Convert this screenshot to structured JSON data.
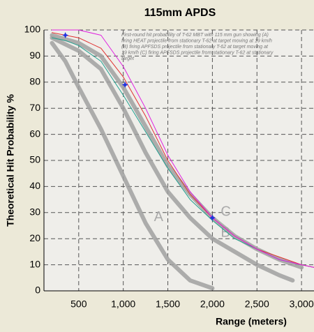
{
  "chart_data": {
    "type": "line",
    "title": "115mm APDS",
    "x_label": "Range (meters)",
    "y_label": "Theoretical Hit Probability %",
    "annotation_lines": [
      "First-round hit probability of T-62 MBT with 115 mm gun showing (A)",
      "firing HEAT projectile from stationary T-62 at target moving at 19 km/h",
      "(B) firing APFSDS projectile from stationary T-62 at target moving at",
      "19 km/h (C) firing APFSDS projectile from stationary T-62 at stationary",
      "target"
    ],
    "xlim": [
      110,
      3140
    ],
    "ylim": [
      0,
      100
    ],
    "xticks": [
      500,
      {
        "value": 1000,
        "label": "1,000"
      },
      {
        "value": 1500,
        "label": "1,500"
      },
      {
        "value": 2000,
        "label": "2,000"
      },
      {
        "value": 2500,
        "label": "2,500"
      },
      {
        "value": 3000,
        "label": "3,000"
      }
    ],
    "yticks": [
      0,
      10,
      20,
      30,
      40,
      50,
      60,
      70,
      80,
      90,
      100
    ],
    "grid": true,
    "series": [
      {
        "label": "A",
        "color": "#a0a0a0",
        "width": 6,
        "x": [
          200,
          350,
          500,
          750,
          1000,
          1250,
          1500,
          1750,
          2000
        ],
        "values": [
          95,
          88,
          78,
          62,
          44,
          26,
          12,
          4,
          1
        ]
      },
      {
        "label": "B",
        "color": "#a0a0a0",
        "width": 6,
        "x": [
          200,
          500,
          750,
          1000,
          1250,
          1500,
          1750,
          2000,
          2250,
          2500,
          2750,
          2900
        ],
        "values": [
          97,
          92,
          85,
          70,
          53,
          38,
          28,
          20,
          15,
          10,
          6,
          4
        ]
      },
      {
        "label": "C",
        "color": "#a0a0a0",
        "width": 6,
        "x": [
          200,
          500,
          750,
          1000,
          1250,
          1500,
          1750,
          2000,
          2250,
          2500,
          2750,
          3000
        ],
        "values": [
          98,
          95,
          90,
          78,
          63,
          48,
          37,
          28,
          21,
          16,
          12,
          9
        ]
      },
      {
        "color": "#20a090",
        "width": 1,
        "x": [
          200,
          350,
          500,
          750,
          1000,
          1250,
          1500,
          1750,
          2000,
          2250,
          2500,
          2750,
          3000,
          3140
        ],
        "values": [
          97,
          96,
          94,
          88,
          75,
          61,
          47,
          35,
          27,
          20,
          16,
          12,
          10,
          9
        ]
      },
      {
        "color": "#e03030",
        "width": 1,
        "x": [
          200,
          350,
          500,
          750,
          1000,
          1250,
          1500,
          1750,
          2000,
          2250,
          2500,
          2750,
          3000,
          3140
        ],
        "values": [
          99,
          98,
          97,
          93,
          82,
          67,
          50,
          37,
          28,
          21,
          16,
          13,
          10,
          9
        ]
      },
      {
        "color": "#e020e0",
        "width": 1,
        "x": [
          200,
          350,
          500,
          750,
          1000,
          1250,
          1500,
          1750,
          2000,
          2250,
          2500,
          2750,
          3000,
          3140
        ],
        "values": [
          100,
          100,
          100,
          98,
          86,
          70,
          52,
          38,
          28,
          21,
          16,
          12,
          10,
          9
        ]
      },
      {
        "color": "#2030e0",
        "marker": "star",
        "x": [
          350,
          1020,
          2000
        ],
        "values": [
          98,
          79,
          28
        ]
      }
    ]
  }
}
